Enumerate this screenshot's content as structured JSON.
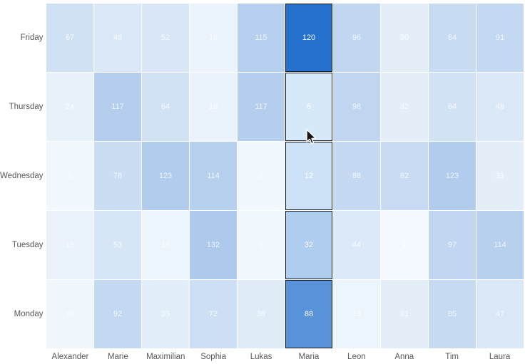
{
  "chart_data": {
    "type": "heatmap",
    "title": "",
    "xlabel": "",
    "ylabel": "",
    "legend_position": "none",
    "grid": "off",
    "x_categories": [
      "Alexander",
      "Marie",
      "Maximilian",
      "Sophia",
      "Lukas",
      "Maria",
      "Leon",
      "Anna",
      "Tim",
      "Laura"
    ],
    "y_categories": [
      "Friday",
      "Thursday",
      "Wednesday",
      "Tuesday",
      "Monday"
    ],
    "rows": [
      {
        "day": "Friday",
        "values": [
          67,
          48,
          52,
          16,
          115,
          120,
          96,
          30,
          84,
          91
        ]
      },
      {
        "day": "Thursday",
        "values": [
          24,
          117,
          64,
          19,
          117,
          6,
          98,
          32,
          64,
          48
        ]
      },
      {
        "day": "Wednesday",
        "values": [
          8,
          78,
          123,
          114,
          8,
          12,
          88,
          82,
          123,
          31
        ]
      },
      {
        "day": "Tuesday",
        "values": [
          19,
          53,
          15,
          132,
          5,
          32,
          44,
          1,
          97,
          114
        ]
      },
      {
        "day": "Monday",
        "values": [
          10,
          92,
          35,
          72,
          38,
          88,
          13,
          31,
          85,
          47
        ]
      }
    ],
    "highlighted_column": "Maria",
    "color_scale": {
      "min_value": 0,
      "max_value": 132,
      "min_color": "#DFEFFB",
      "max_color": "#1464C8"
    },
    "dimmed_column_opacity": 0.35
  }
}
